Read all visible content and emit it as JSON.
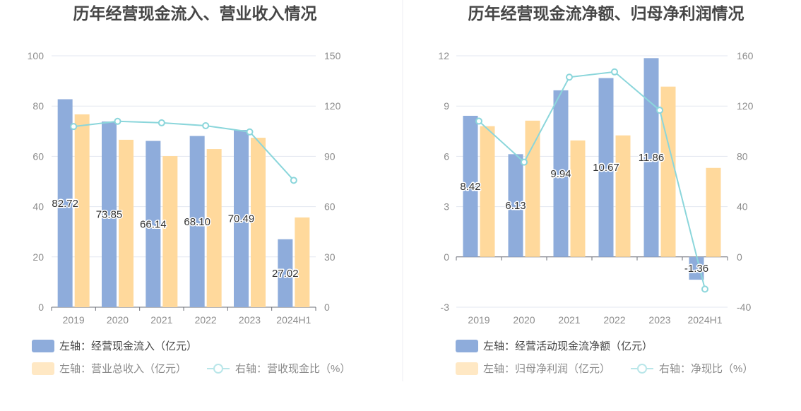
{
  "chart_data": [
    {
      "type": "bar",
      "title": "历年经营现金流入、营业收入情况",
      "categories": [
        "2019",
        "2020",
        "2021",
        "2022",
        "2023",
        "2024H1"
      ],
      "left_axis": {
        "min": 0,
        "max": 100,
        "ticks": [
          0,
          20,
          40,
          60,
          80,
          100
        ]
      },
      "right_axis": {
        "min": 0,
        "max": 150,
        "ticks": [
          0,
          30,
          60,
          90,
          120,
          150
        ]
      },
      "series": [
        {
          "type": "bar",
          "legend": "左轴：经营现金流入（亿元）",
          "color": "#8eacdb",
          "values": [
            82.72,
            73.85,
            66.14,
            68.1,
            70.49,
            27.02
          ],
          "labels": [
            "82.72",
            "73.85",
            "66.14",
            "68.10",
            "70.49",
            "27.02"
          ]
        },
        {
          "type": "bar",
          "legend": "左轴：营业总收入（亿元）",
          "color": "#ffd99c",
          "values": [
            76.7,
            66.6,
            60.1,
            62.9,
            67.4,
            35.7
          ]
        },
        {
          "type": "line",
          "legend": "右轴：营收现金比（%）",
          "color": "#8bd6db",
          "values": [
            107.8,
            110.9,
            110.0,
            108.3,
            104.6,
            75.7
          ]
        }
      ]
    },
    {
      "type": "bar",
      "title": "历年经营现金流净额、归母净利润情况",
      "categories": [
        "2019",
        "2020",
        "2021",
        "2022",
        "2023",
        "2024H1"
      ],
      "left_axis": {
        "min": -3,
        "max": 12,
        "ticks": [
          -3,
          0,
          3,
          6,
          9,
          12
        ]
      },
      "right_axis": {
        "min": -40,
        "max": 160,
        "ticks": [
          -40,
          0,
          40,
          80,
          120,
          160
        ]
      },
      "series": [
        {
          "type": "bar",
          "legend": "左轴：经营活动现金流净额（亿元）",
          "color": "#8eacdb",
          "values": [
            8.42,
            6.13,
            9.94,
            10.67,
            11.86,
            -1.36
          ],
          "labels": [
            "8.42",
            "6.13",
            "9.94",
            "10.67",
            "11.86",
            "-1.36"
          ]
        },
        {
          "type": "bar",
          "legend": "左轴：归母净利润（亿元）",
          "color": "#ffd99c",
          "values": [
            7.8,
            8.13,
            6.95,
            7.25,
            10.16,
            5.31
          ]
        },
        {
          "type": "line",
          "legend": "右轴：净现比（%）",
          "color": "#8bd6db",
          "values": [
            108.0,
            75.4,
            143.0,
            147.2,
            116.7,
            -25.6
          ]
        }
      ]
    }
  ]
}
